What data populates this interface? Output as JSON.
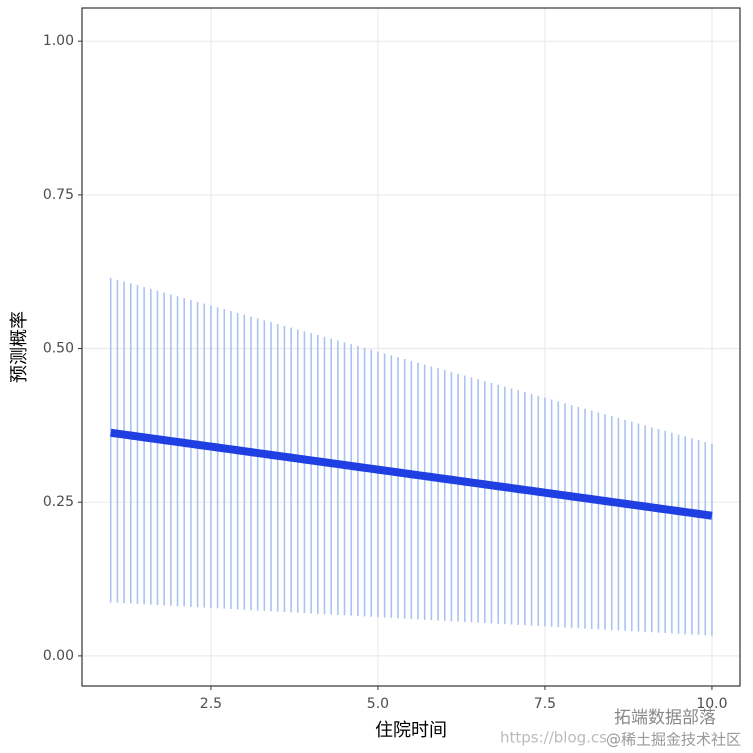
{
  "chart_data": {
    "type": "line",
    "x_label": "住院时间",
    "y_label": "预测概率",
    "x": [
      1,
      1.1,
      1.2,
      1.3,
      1.4,
      1.5,
      1.6,
      1.7,
      1.8,
      1.9,
      2,
      2.1,
      2.2,
      2.3,
      2.4,
      2.5,
      2.6,
      2.7,
      2.8,
      2.9,
      3,
      3.1,
      3.2,
      3.3,
      3.4,
      3.5,
      3.6,
      3.7,
      3.8,
      3.9,
      4,
      4.1,
      4.2,
      4.3,
      4.4,
      4.5,
      4.6,
      4.7,
      4.8,
      4.9,
      5,
      5.1,
      5.2,
      5.3,
      5.4,
      5.5,
      5.6,
      5.7,
      5.8,
      5.9,
      6,
      6.1,
      6.2,
      6.3,
      6.4,
      6.5,
      6.6,
      6.7,
      6.8,
      6.9,
      7,
      7.1,
      7.2,
      7.3,
      7.4,
      7.5,
      7.6,
      7.7,
      7.8,
      7.9,
      8,
      8.1,
      8.2,
      8.3,
      8.4,
      8.5,
      8.6,
      8.7,
      8.8,
      8.9,
      9,
      9.1,
      9.2,
      9.3,
      9.4,
      9.5,
      9.6,
      9.7,
      9.8,
      9.9,
      10
    ],
    "values": [
      0.363,
      0.3615,
      0.36,
      0.3585,
      0.357,
      0.3555,
      0.354,
      0.3525,
      0.351,
      0.3495,
      0.348,
      0.3465,
      0.345,
      0.3435,
      0.342,
      0.3405,
      0.339,
      0.3375,
      0.336,
      0.3345,
      0.333,
      0.3315,
      0.33,
      0.3285,
      0.327,
      0.3255,
      0.324,
      0.3225,
      0.321,
      0.3195,
      0.318,
      0.3165,
      0.315,
      0.3135,
      0.312,
      0.3105,
      0.309,
      0.3075,
      0.306,
      0.3045,
      0.303,
      0.3015,
      0.3,
      0.2985,
      0.297,
      0.2955,
      0.294,
      0.2925,
      0.291,
      0.2895,
      0.288,
      0.2865,
      0.285,
      0.2835,
      0.282,
      0.2805,
      0.279,
      0.2775,
      0.276,
      0.2745,
      0.273,
      0.2715,
      0.27,
      0.2685,
      0.267,
      0.2655,
      0.264,
      0.2625,
      0.261,
      0.2595,
      0.258,
      0.2565,
      0.255,
      0.2535,
      0.252,
      0.2505,
      0.249,
      0.2475,
      0.246,
      0.2445,
      0.243,
      0.2415,
      0.24,
      0.2385,
      0.237,
      0.2355,
      0.234,
      0.2325,
      0.231,
      0.2295,
      0.228
    ],
    "upper": [
      0.615,
      0.612,
      0.609,
      0.606,
      0.603,
      0.6,
      0.597,
      0.594,
      0.591,
      0.588,
      0.585,
      0.582,
      0.579,
      0.576,
      0.573,
      0.57,
      0.567,
      0.564,
      0.561,
      0.558,
      0.555,
      0.552,
      0.549,
      0.546,
      0.543,
      0.54,
      0.537,
      0.534,
      0.531,
      0.528,
      0.525,
      0.522,
      0.519,
      0.516,
      0.513,
      0.51,
      0.507,
      0.504,
      0.501,
      0.498,
      0.495,
      0.492,
      0.489,
      0.486,
      0.483,
      0.48,
      0.477,
      0.474,
      0.471,
      0.468,
      0.465,
      0.462,
      0.459,
      0.456,
      0.453,
      0.45,
      0.447,
      0.444,
      0.441,
      0.438,
      0.435,
      0.432,
      0.429,
      0.426,
      0.423,
      0.42,
      0.417,
      0.414,
      0.411,
      0.408,
      0.405,
      0.402,
      0.399,
      0.396,
      0.393,
      0.39,
      0.387,
      0.384,
      0.381,
      0.378,
      0.375,
      0.372,
      0.369,
      0.366,
      0.363,
      0.36,
      0.357,
      0.354,
      0.351,
      0.348,
      0.345
    ],
    "lower": [
      0.087,
      0.0864,
      0.0858,
      0.0852,
      0.0846,
      0.084,
      0.0834,
      0.0828,
      0.0822,
      0.0816,
      0.081,
      0.0804,
      0.0798,
      0.0792,
      0.0786,
      0.078,
      0.0774,
      0.0768,
      0.0762,
      0.0756,
      0.075,
      0.0744,
      0.0738,
      0.0732,
      0.0726,
      0.072,
      0.0714,
      0.0708,
      0.0702,
      0.0696,
      0.069,
      0.0684,
      0.0678,
      0.0672,
      0.0666,
      0.066,
      0.0654,
      0.0648,
      0.0642,
      0.0636,
      0.063,
      0.0624,
      0.0618,
      0.0612,
      0.0606,
      0.06,
      0.0594,
      0.0588,
      0.0582,
      0.0576,
      0.057,
      0.0564,
      0.0558,
      0.0552,
      0.0546,
      0.054,
      0.0534,
      0.0528,
      0.0522,
      0.0516,
      0.051,
      0.0504,
      0.0498,
      0.0492,
      0.0486,
      0.048,
      0.0474,
      0.0468,
      0.0462,
      0.0456,
      0.045,
      0.0444,
      0.0438,
      0.0432,
      0.0426,
      0.042,
      0.0414,
      0.0408,
      0.0402,
      0.0396,
      0.039,
      0.0384,
      0.0378,
      0.0372,
      0.0366,
      0.036,
      0.0354,
      0.0348,
      0.0342,
      0.0336,
      0.033
    ],
    "color": "#1f3fe3",
    "errorbar_color": "#a9c3f2",
    "xlim": [
      0.57,
      10.42
    ],
    "ylim": [
      -0.049,
      1.054
    ],
    "xticks": [
      {
        "value": 2.5,
        "label": "2.5"
      },
      {
        "value": 5,
        "label": "5.0"
      },
      {
        "value": 7.5,
        "label": "7.5"
      },
      {
        "value": 10,
        "label": "10.0"
      }
    ],
    "yticks": [
      {
        "value": 0,
        "label": "0.00"
      },
      {
        "value": 0.25,
        "label": "0.25"
      },
      {
        "value": 0.5,
        "label": "0.50"
      },
      {
        "value": 0.75,
        "label": "0.75"
      },
      {
        "value": 1,
        "label": "1.00"
      }
    ],
    "grid": true
  },
  "watermarks": [
    "https://blog.cs",
    "拓端数据部落",
    "@稀土掘金技术社区"
  ]
}
